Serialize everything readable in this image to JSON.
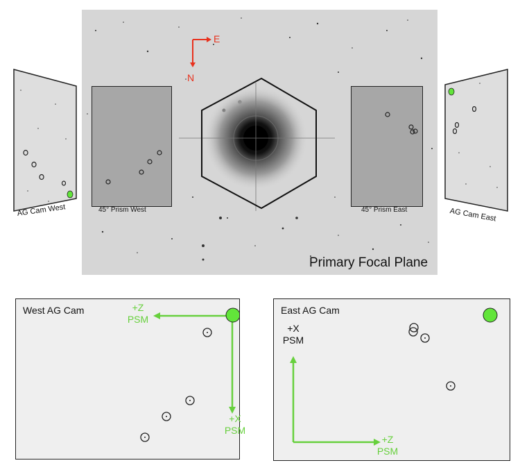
{
  "focal_plane": {
    "title": "Primary Focal Plane",
    "compass": {
      "north": "N",
      "east": "E"
    },
    "prism_west_label": "45° Prism West",
    "prism_east_label": "45° Prism East"
  },
  "side_cams": {
    "west_label": "AG Cam West",
    "east_label": "AG Cam East"
  },
  "west_panel": {
    "title": "West AG Cam",
    "z_axis_sign": "+Z",
    "z_axis_unit": "PSM",
    "x_axis_sign": "+X",
    "x_axis_unit": "PSM"
  },
  "east_panel": {
    "title": "East AG Cam",
    "x_axis_sign": "+X",
    "x_axis_unit": "PSM",
    "z_axis_sign": "+Z",
    "z_axis_unit": "PSM"
  },
  "colors": {
    "axis_green": "#67d03d",
    "compass_red": "#e8301c",
    "marker_green": "#62e53a"
  }
}
